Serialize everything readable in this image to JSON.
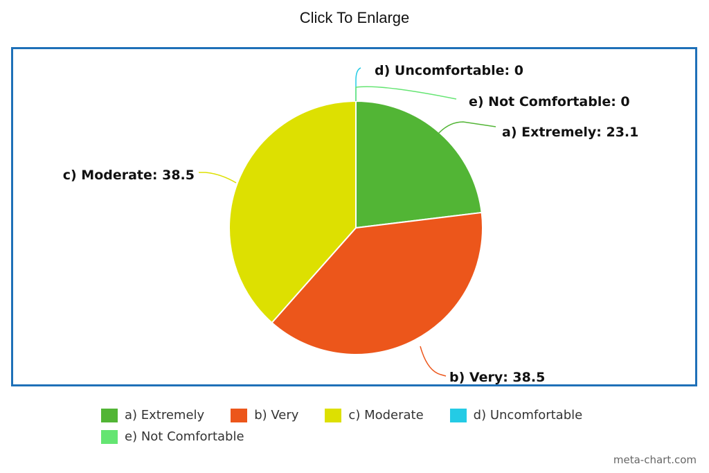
{
  "header": {
    "title": "Click To Enlarge"
  },
  "watermark": "meta-chart.com",
  "colors": {
    "frame": "#1e70b8"
  },
  "chart_data": {
    "type": "pie",
    "categories": [
      "a) Extremely",
      "b) Very",
      "c) Moderate",
      "d) Uncomfortable",
      "e) Not Comfortable"
    ],
    "values": [
      23.1,
      38.5,
      38.5,
      0,
      0
    ],
    "colors": [
      "#52b535",
      "#ec561b",
      "#dde001",
      "#24cbe5",
      "#64e572"
    ],
    "labels": [
      "a) Extremely: 23.1",
      "b) Very: 38.5",
      "c) Moderate: 38.5",
      "d) Uncomfortable: 0",
      "e) Not Comfortable: 0"
    ],
    "legend_position": "bottom"
  }
}
